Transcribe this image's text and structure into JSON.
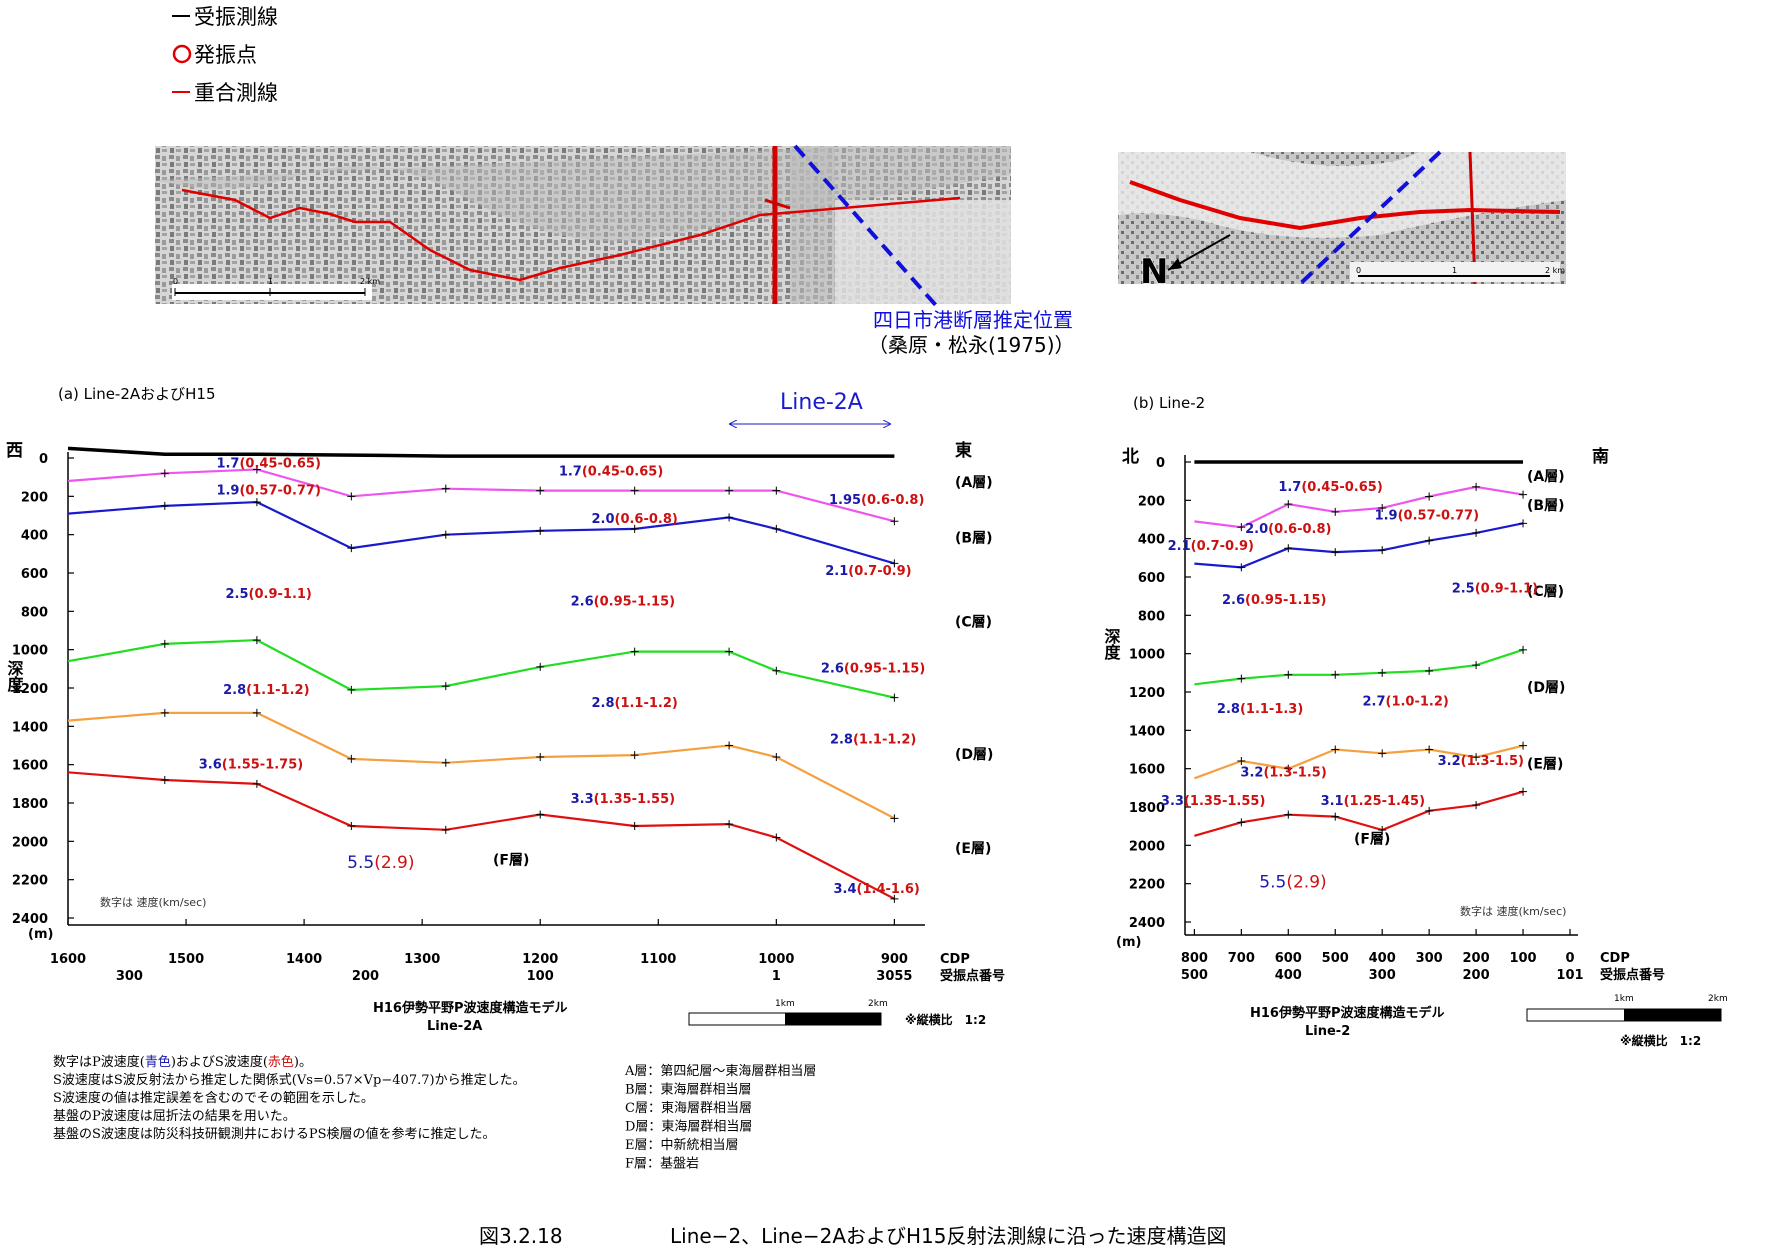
{
  "legend": {
    "items": [
      {
        "symbol": "black-line",
        "label": "受振測線",
        "color": "#000000"
      },
      {
        "symbol": "red-circle",
        "label": "発振点",
        "color": "#e00000"
      },
      {
        "symbol": "red-line",
        "label": "重合測線",
        "color": "#e00000"
      }
    ]
  },
  "map_a": {
    "scale_ticks": [
      "0",
      "1",
      "2 km"
    ]
  },
  "map_b": {
    "scale_ticks": [
      "0",
      "1",
      "2 km"
    ],
    "north_label": "N"
  },
  "fault": {
    "label": "四日市港断層推定位置",
    "ref": "（桑原・松永(1975)）"
  },
  "colors": {
    "A": "#ee55ee",
    "B": "#1a1acc",
    "D": "#22dd22",
    "E": "#f4a040",
    "F": "#e01010",
    "p_velocity": "#1a1aaa",
    "s_velocity": "#cc1111",
    "fault_line": "#1010dd"
  },
  "chart_data": [
    {
      "type": "line",
      "panel": "(a) Line-2AおよびH15",
      "line_label": "Line-2A",
      "left_dir": "西",
      "right_dir": "東",
      "ylabel": "深度",
      "yunit": "(m)",
      "ylim": [
        0,
        2400
      ],
      "yticks": [
        "0",
        "200",
        "400",
        "600",
        "800",
        "1000",
        "1200",
        "1400",
        "1600",
        "1800",
        "2000",
        "2200",
        "2400"
      ],
      "xlim": [
        1600,
        880
      ],
      "cdp_ticks": [
        "1600",
        "1500",
        "1400",
        "1300",
        "1200",
        "1100",
        "1000",
        "900"
      ],
      "cdp_label": "CDP",
      "shot_label": "受振点番号",
      "shot_ticks": [
        {
          "cdp": 1548,
          "label": "300"
        },
        {
          "cdp": 1348,
          "label": "200"
        },
        {
          "cdp": 1200,
          "label": "100"
        },
        {
          "cdp": 1000,
          "label": "1"
        },
        {
          "cdp": 900,
          "label": "3055"
        }
      ],
      "x": [
        1600,
        1518,
        1440,
        1360,
        1280,
        1200,
        1120,
        1040,
        1000,
        900
      ],
      "series": [
        {
          "key": "surface",
          "color": "#000000",
          "values": [
            -50,
            -20,
            -20,
            -15,
            -10,
            -10,
            -10,
            -10,
            -10,
            -10
          ]
        },
        {
          "key": "A",
          "color": "#ee55ee",
          "values": [
            120,
            80,
            60,
            200,
            160,
            170,
            170,
            170,
            170,
            330
          ]
        },
        {
          "key": "B",
          "color": "#1a1acc",
          "values": [
            290,
            250,
            230,
            470,
            400,
            380,
            370,
            310,
            370,
            550
          ]
        },
        {
          "key": "D",
          "color": "#22dd22",
          "values": [
            1060,
            970,
            950,
            1210,
            1190,
            1090,
            1010,
            1010,
            1110,
            1250
          ]
        },
        {
          "key": "E",
          "color": "#f4a040",
          "values": [
            1370,
            1330,
            1330,
            1570,
            1590,
            1560,
            1550,
            1500,
            1560,
            1880
          ]
        },
        {
          "key": "F",
          "color": "#e01010",
          "values": [
            1640,
            1680,
            1700,
            1920,
            1940,
            1860,
            1920,
            1910,
            1980,
            2300
          ]
        }
      ],
      "layer_labels": [
        {
          "text": "(A層)",
          "depth": 150
        },
        {
          "text": "(B層)",
          "depth": 440
        },
        {
          "text": "(C層)",
          "depth": 880
        },
        {
          "text": "(D層)",
          "depth": 1570
        },
        {
          "text": "(E層)",
          "depth": 2060
        },
        {
          "text": "(F層)",
          "cdp": 1240,
          "depth": 2120
        }
      ],
      "velocity_labels": [
        {
          "p": "1.7",
          "s": "(0.45-0.65)",
          "cdp": 1430,
          "depth": 50
        },
        {
          "p": "1.7",
          "s": "(0.45-0.65)",
          "cdp": 1140,
          "depth": 90
        },
        {
          "p": "1.9",
          "s": "(0.57-0.77)",
          "cdp": 1430,
          "depth": 190
        },
        {
          "p": "1.95",
          "s": "(0.6-0.8)",
          "cdp": 915,
          "depth": 240
        },
        {
          "p": "2.0",
          "s": "(0.6-0.8)",
          "cdp": 1120,
          "depth": 340
        },
        {
          "p": "2.1",
          "s": "(0.7-0.9)",
          "cdp": 922,
          "depth": 610
        },
        {
          "p": "2.5",
          "s": "(0.9-1.1)",
          "cdp": 1430,
          "depth": 730
        },
        {
          "p": "2.6",
          "s": "(0.95-1.15)",
          "cdp": 1130,
          "depth": 770
        },
        {
          "p": "2.6",
          "s": "(0.95-1.15)",
          "cdp": 918,
          "depth": 1120
        },
        {
          "p": "2.8",
          "s": "(1.1-1.2)",
          "cdp": 1432,
          "depth": 1230
        },
        {
          "p": "2.8",
          "s": "(1.1-1.2)",
          "cdp": 1120,
          "depth": 1300
        },
        {
          "p": "2.8",
          "s": "(1.1-1.2)",
          "cdp": 918,
          "depth": 1490
        },
        {
          "p": "3.6",
          "s": "(1.55-1.75)",
          "cdp": 1445,
          "depth": 1620
        },
        {
          "p": "3.3",
          "s": "(1.35-1.55)",
          "cdp": 1130,
          "depth": 1800
        },
        {
          "p": "3.4",
          "s": "(1.4-1.6)",
          "cdp": 915,
          "depth": 2270
        },
        {
          "p": "5.5",
          "s": "(2.9)",
          "cdp": 1335,
          "depth": 2140,
          "large": true
        }
      ],
      "note": "数字は 速度(km/sec)",
      "title": "H16伊勢平野P波速度構造モデル",
      "subtitle": "Line-2A",
      "scale_ticks": [
        "1km",
        "2km"
      ],
      "ratio": "※縦横比　1:2"
    },
    {
      "type": "line",
      "panel": "(b) Line-2",
      "left_dir": "北",
      "right_dir": "南",
      "ylabel": "深度",
      "yunit": "(m)",
      "ylim": [
        0,
        2400
      ],
      "yticks": [
        "0",
        "200",
        "400",
        "600",
        "800",
        "1000",
        "1200",
        "1400",
        "1600",
        "1800",
        "2000",
        "2200",
        "2400"
      ],
      "xlim": [
        820,
        0
      ],
      "cdp_ticks": [
        "800",
        "700",
        "600",
        "500",
        "400",
        "300",
        "200",
        "100",
        "0"
      ],
      "cdp_label": "CDP",
      "shot_label": "受振点番号",
      "shot_ticks": [
        {
          "cdp": 800,
          "label": "500"
        },
        {
          "cdp": 600,
          "label": "400"
        },
        {
          "cdp": 400,
          "label": "300"
        },
        {
          "cdp": 200,
          "label": "200"
        },
        {
          "cdp": 0,
          "label": "101"
        }
      ],
      "x": [
        800,
        700,
        600,
        500,
        400,
        300,
        200,
        100
      ],
      "series": [
        {
          "key": "surface",
          "color": "#000000",
          "values": [
            0,
            0,
            0,
            0,
            0,
            0,
            0,
            0
          ]
        },
        {
          "key": "A",
          "color": "#ee55ee",
          "values": [
            310,
            340,
            220,
            260,
            240,
            180,
            130,
            170
          ]
        },
        {
          "key": "B",
          "color": "#1a1acc",
          "values": [
            530,
            550,
            450,
            470,
            460,
            410,
            370,
            320
          ]
        },
        {
          "key": "D",
          "color": "#22dd22",
          "values": [
            1160,
            1130,
            1110,
            1110,
            1100,
            1090,
            1060,
            980
          ]
        },
        {
          "key": "E",
          "color": "#f4a040",
          "values": [
            1650,
            1560,
            1600,
            1500,
            1520,
            1500,
            1540,
            1480
          ]
        },
        {
          "key": "F",
          "color": "#e01010",
          "values": [
            1950,
            1880,
            1840,
            1850,
            1920,
            1820,
            1790,
            1720
          ]
        }
      ],
      "layer_labels": [
        {
          "text": "(A層)",
          "depth": 100
        },
        {
          "text": "(B層)",
          "depth": 250
        },
        {
          "text": "(C層)",
          "depth": 700
        },
        {
          "text": "(D層)",
          "depth": 1200
        },
        {
          "text": "(E層)",
          "depth": 1600
        },
        {
          "text": "(F層)",
          "cdp": 460,
          "depth": 1990
        }
      ],
      "velocity_labels": [
        {
          "p": "1.7",
          "s": "(0.45-0.65)",
          "cdp": 510,
          "depth": 150
        },
        {
          "p": "2.0",
          "s": "(0.6-0.8)",
          "cdp": 600,
          "depth": 370
        },
        {
          "p": "1.9",
          "s": "(0.57-0.77)",
          "cdp": 305,
          "depth": 300
        },
        {
          "p": "2.1",
          "s": "(0.7-0.9)",
          "cdp": 765,
          "depth": 460
        },
        {
          "p": "2.6",
          "s": "(0.95-1.15)",
          "cdp": 630,
          "depth": 740
        },
        {
          "p": "2.5",
          "s": "(0.9-1.1)",
          "cdp": 160,
          "depth": 680
        },
        {
          "p": "2.8",
          "s": "(1.1-1.3)",
          "cdp": 660,
          "depth": 1310
        },
        {
          "p": "2.7",
          "s": "(1.0-1.2)",
          "cdp": 350,
          "depth": 1270
        },
        {
          "p": "3.2",
          "s": "(1.3-1.5)",
          "cdp": 610,
          "depth": 1640
        },
        {
          "p": "3.2",
          "s": "(1.3-1.5)",
          "cdp": 190,
          "depth": 1580
        },
        {
          "p": "3.3",
          "s": "(1.35-1.55)",
          "cdp": 760,
          "depth": 1790
        },
        {
          "p": "3.1",
          "s": "(1.25-1.45)",
          "cdp": 420,
          "depth": 1790
        },
        {
          "p": "5.5",
          "s": "(2.9)",
          "cdp": 590,
          "depth": 2220,
          "large": true
        }
      ],
      "note": "数字は 速度(km/sec)",
      "title": "H16伊勢平野P波速度構造モデル",
      "subtitle": "Line-2",
      "scale_ticks": [
        "1km",
        "2km"
      ],
      "ratio": "※縦横比　1:2"
    }
  ],
  "notes": {
    "lines": [
      [
        "数字はP波速度(",
        {
          "t": "青色",
          "c": "blue"
        },
        ")およびS波速度(",
        {
          "t": "赤色",
          "c": "red"
        },
        ")。"
      ],
      [
        "S波速度はS波反射法から推定した関係式(Vs=0.57×Vp−407.7)から推定した。"
      ],
      [
        "S波速度の値は推定誤差を含むのでその範囲を示した。"
      ],
      [
        "基盤のP波速度は屈折法の結果を用いた。"
      ],
      [
        "基盤のS波速度は防災科技研観測井におけるPS検層の値を参考に推定した。"
      ]
    ]
  },
  "layer_defs": [
    "A層：第四紀層〜東海層群相当層",
    "B層：東海層群相当層",
    "C層：東海層群相当層",
    "D層：東海層群相当層",
    "E層：中新統相当層",
    "F層：基盤岩"
  ],
  "caption": {
    "number": "図3.2.18",
    "text": "Line−2、Line−2AおよびH15反射法測線に沿った速度構造図"
  }
}
